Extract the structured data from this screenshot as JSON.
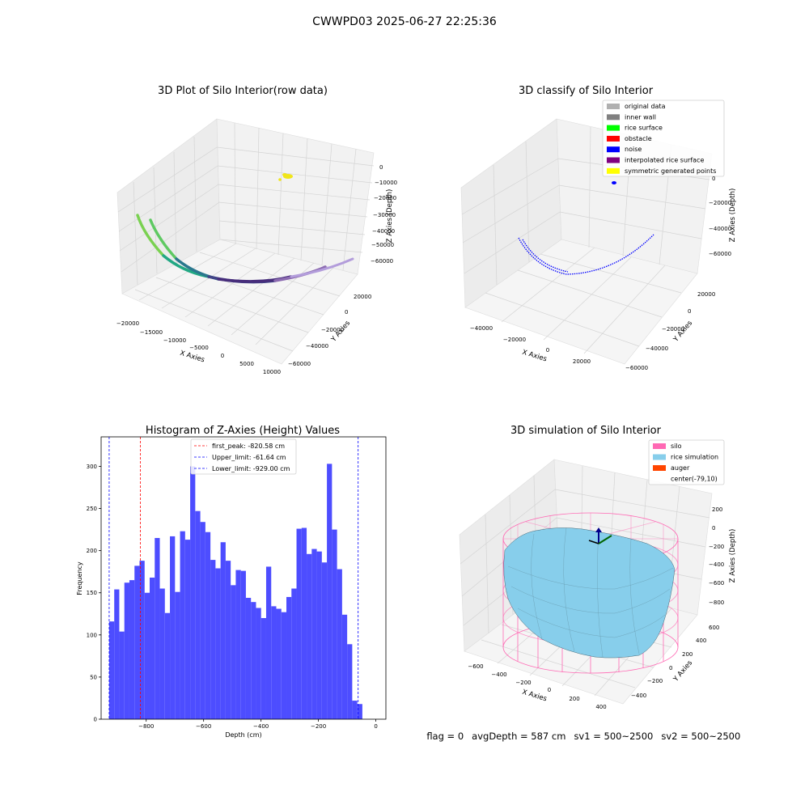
{
  "suptitle": "CWWPD03 2025-06-27 22:25:36",
  "plot1": {
    "title": "3D Plot of Silo Interior(row data)",
    "xlabel": "X Axies",
    "ylabel": "Y Axies",
    "zlabel": "Z Axies (Depth)",
    "xticks": [
      "−20000",
      "−15000",
      "−10000",
      "−5000",
      "0",
      "5000",
      "10000"
    ],
    "yticks": [
      "20000",
      "0",
      "−20000",
      "−40000",
      "−60000"
    ],
    "zticks": [
      "0",
      "−10000",
      "−20000",
      "−30000",
      "−40000",
      "−50000",
      "−60000"
    ]
  },
  "plot2": {
    "title": "3D classify of Silo Interior",
    "xlabel": "X Axies",
    "ylabel": "Y Axies",
    "zlabel": "Z Axies (Depth)",
    "xticks": [
      "−40000",
      "−20000",
      "0",
      "20000"
    ],
    "yticks": [
      "20000",
      "0",
      "−20000",
      "−40000",
      "−60000"
    ],
    "zticks": [
      "0",
      "−20000",
      "−40000",
      "−60000"
    ],
    "legend": [
      {
        "label": "original data",
        "color": "#b0b0b0"
      },
      {
        "label": "inner wall",
        "color": "#808080"
      },
      {
        "label": "rice surface",
        "color": "#00ff00"
      },
      {
        "label": "obstacle",
        "color": "#ff0000"
      },
      {
        "label": "noise",
        "color": "#0000ff"
      },
      {
        "label": "interpolated rice surface",
        "color": "#800080"
      },
      {
        "label": "symmetric generated points",
        "color": "#ffff00"
      }
    ]
  },
  "plot4": {
    "title": "3D simulation of Silo Interior",
    "xlabel": "X Axies",
    "ylabel": "Y Axies",
    "zlabel": "Z Axies (Depth)",
    "xticks": [
      "−600",
      "−400",
      "−200",
      "0",
      "200",
      "400"
    ],
    "yticks": [
      "600",
      "400",
      "200",
      "0",
      "−200",
      "−400"
    ],
    "zticks": [
      "200",
      "0",
      "−200",
      "−400",
      "−600",
      "−800"
    ],
    "legend": [
      {
        "label": "silo",
        "color": "#ff69b4"
      },
      {
        "label": "rice simulation",
        "color": "#87ceeb"
      },
      {
        "label": "auger",
        "color": "#ff4500"
      },
      {
        "label": "center(-79,10)",
        "color": ""
      }
    ]
  },
  "status": {
    "flag": "flag = 0",
    "avg_depth": "avgDepth = 587 cm",
    "sv1": "sv1 = 500~2500",
    "sv2": "sv2 = 500~2500"
  },
  "chart_data": {
    "type": "bar",
    "title": "Histogram of Z-Axies (Height) Values",
    "xlabel": "Depth (cm)",
    "ylabel": "Frequency",
    "xlim": [
      -957,
      35
    ],
    "ylim": [
      0,
      335
    ],
    "xticks": [
      "−800",
      "−600",
      "−400",
      "−200",
      "0"
    ],
    "yticks": [
      "0",
      "50",
      "100",
      "150",
      "200",
      "250",
      "300"
    ],
    "bin_start": -929,
    "bin_width": 17.64,
    "values": [
      116,
      154,
      104,
      162,
      165,
      182,
      188,
      150,
      168,
      215,
      155,
      126,
      217,
      151,
      223,
      213,
      300,
      247,
      234,
      222,
      189,
      179,
      210,
      188,
      159,
      177,
      176,
      144,
      139,
      132,
      120,
      181,
      134,
      131,
      127,
      145,
      155,
      226,
      227,
      196,
      202,
      199,
      186,
      303,
      225,
      178,
      124,
      89,
      22,
      18
    ],
    "vlines": [
      {
        "label": "first_peak: -820.58 cm",
        "x": -820.58,
        "color": "#ff0000"
      },
      {
        "label": "Upper_limit: -61.64 cm",
        "x": -61.64,
        "color": "#0000ff"
      },
      {
        "label": "Lower_limit: -929.00 cm",
        "x": -929.0,
        "color": "#0000ff"
      }
    ],
    "bar_color": "#4d4dff"
  }
}
